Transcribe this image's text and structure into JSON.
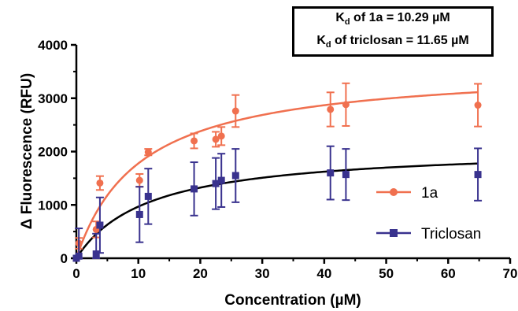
{
  "annotation": {
    "line1": "K<sub>d</sub> of 1a = 10.29 µM",
    "line2": "K<sub>d</sub> of triclosan = 11.65 µM"
  },
  "chart_data": {
    "type": "scatter",
    "xlabel": "Concentration (µM)",
    "ylabel": "Δ Fluorescence (RFU)",
    "xlim": [
      0,
      70
    ],
    "ylim": [
      0,
      4000
    ],
    "x_ticks": [
      0,
      10,
      20,
      30,
      40,
      50,
      60,
      70
    ],
    "y_ticks": [
      0,
      1000,
      2000,
      3000,
      4000
    ],
    "grid": false,
    "legend_position": "right",
    "series": [
      {
        "name": "1a",
        "color": "#f0704f",
        "marker": "circle",
        "x": [
          0,
          0.4,
          3.2,
          3.8,
          10.2,
          11.6,
          19,
          22.5,
          23.4,
          25.7,
          41,
          43.5,
          64.8
        ],
        "y": [
          0,
          280,
          540,
          1410,
          1460,
          1990,
          2200,
          2230,
          2290,
          2760,
          2790,
          2880,
          2870
        ],
        "err": [
          0,
          100,
          150,
          130,
          120,
          60,
          140,
          140,
          170,
          300,
          320,
          400,
          400
        ],
        "fit": {
          "model": "one-site binding",
          "bmax": 3607,
          "kd": 10.29
        }
      },
      {
        "name": "Triclosan",
        "color": "#39328e",
        "marker": "square",
        "x": [
          0,
          0.4,
          3.2,
          3.8,
          10.2,
          11.6,
          19,
          22.5,
          23.4,
          25.7,
          41,
          43.5,
          64.8
        ],
        "y": [
          0,
          40,
          80,
          620,
          820,
          1160,
          1300,
          1400,
          1460,
          1550,
          1600,
          1570,
          1570
        ],
        "err": [
          0,
          520,
          380,
          520,
          520,
          520,
          500,
          480,
          500,
          500,
          500,
          480,
          490
        ],
        "fit": {
          "model": "one-site binding",
          "bmax": 2095,
          "kd": 11.65
        }
      }
    ]
  }
}
